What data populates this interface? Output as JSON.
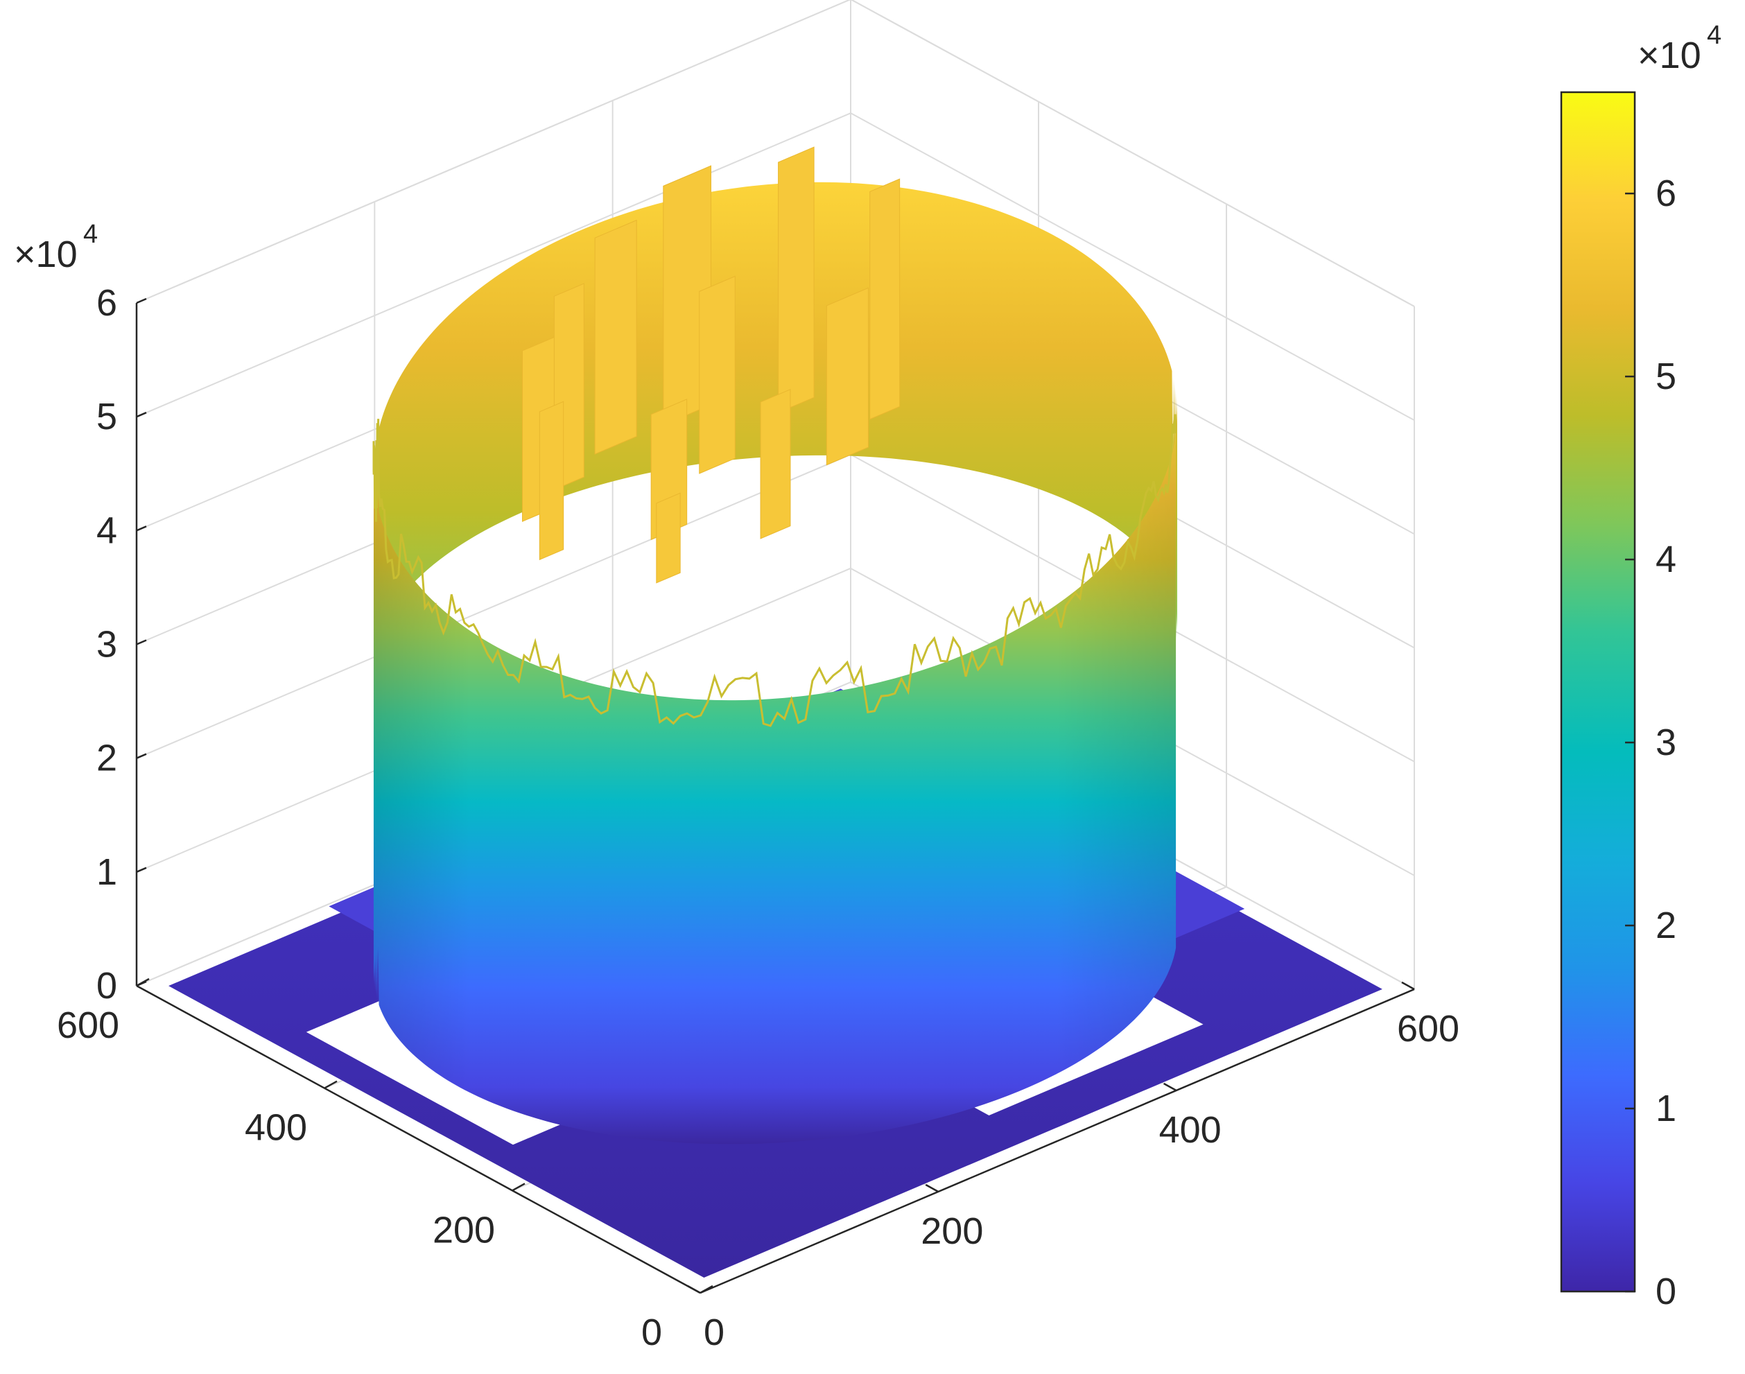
{
  "chart_data": {
    "type": "surface3d",
    "title": "",
    "xlabel": "",
    "ylabel": "",
    "zlabel": "",
    "x": {
      "lim": [
        0,
        600
      ],
      "ticks": [
        0,
        200,
        400,
        600
      ],
      "tick_labels": [
        "0",
        "200",
        "400",
        "600"
      ]
    },
    "y": {
      "lim": [
        0,
        600
      ],
      "ticks": [
        0,
        200,
        400,
        600
      ],
      "tick_labels": [
        "0",
        "200",
        "400",
        "600"
      ]
    },
    "z": {
      "lim": [
        0,
        60000
      ],
      "ticks": [
        0,
        10000,
        20000,
        30000,
        40000,
        50000,
        60000
      ],
      "tick_labels": [
        "0",
        "1",
        "2",
        "3",
        "4",
        "5",
        "6"
      ],
      "exponent_base": "×10",
      "exponent": "4"
    },
    "grid": true,
    "colormap": "parula",
    "colorbar": {
      "position": "right",
      "lim": [
        0,
        65535
      ],
      "ticks": [
        0,
        10000,
        20000,
        30000,
        40000,
        50000,
        60000
      ],
      "tick_labels": [
        "0",
        "1",
        "2",
        "3",
        "4",
        "5",
        "6"
      ],
      "exponent_base": "×10",
      "exponent": "4",
      "colors": [
        "#3e26a8",
        "#4745e5",
        "#3d6bfe",
        "#2094e8",
        "#14adda",
        "#04bcbc",
        "#32c596",
        "#7fc75a",
        "#bdbd2a",
        "#eaba2f",
        "#fdcf37",
        "#f9fb14"
      ]
    },
    "surface": {
      "description_values": {
        "plateau_center_xy": [
          300,
          300
        ],
        "plateau_radius": 265,
        "rim_height_front": 42000,
        "rim_height_back": 54000,
        "inner_spike_max": 62000,
        "floor_height": 0,
        "floor_blocks_height": 3000
      }
    }
  }
}
